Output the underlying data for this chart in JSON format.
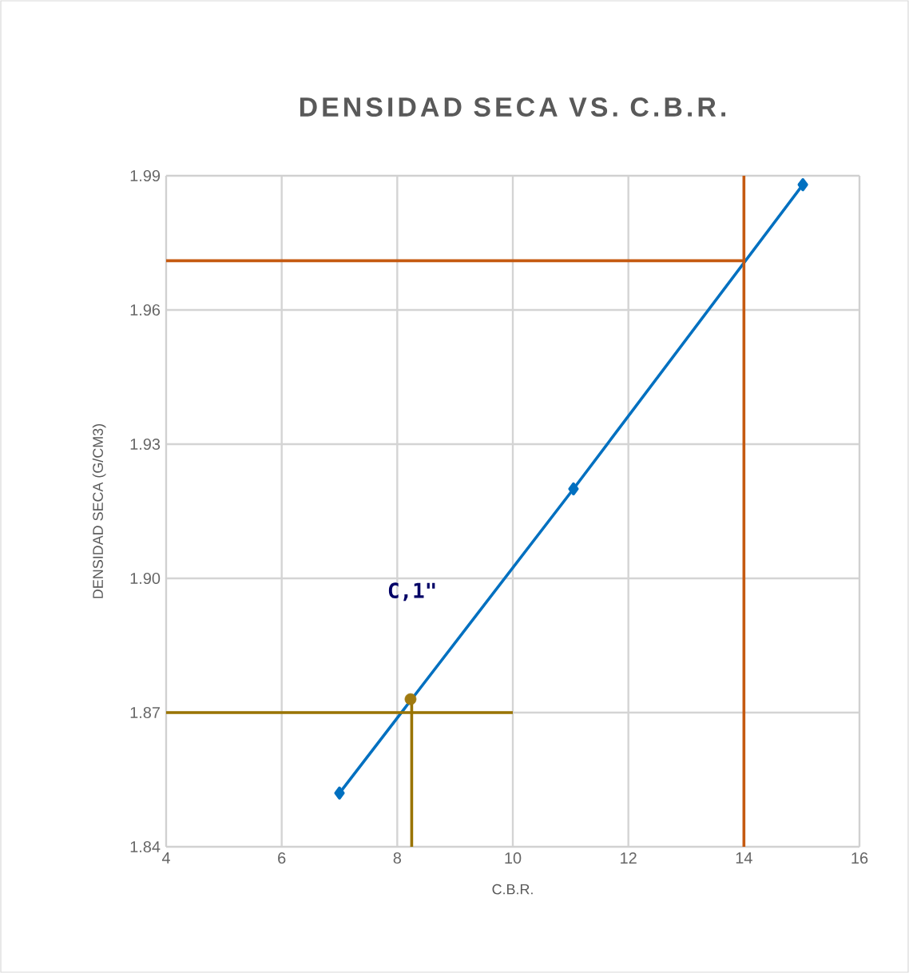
{
  "chart_data": {
    "type": "line",
    "title": "DENSIDAD  SECA VS.  C.B.R.",
    "xlabel": "C.B.R.",
    "ylabel": "DENSIDAD SECA (G/CM3)",
    "series": [
      {
        "color": "#0070c0",
        "marker": "diamond",
        "x": [
          7,
          11.05,
          15.02
        ],
        "values": [
          1.852,
          1.92,
          1.988
        ]
      },
      {
        "color": "#c55a11",
        "marker": "none",
        "x": [
          4,
          14
        ],
        "values": [
          1.971,
          1.971
        ]
      },
      {
        "color": "#c55a11",
        "marker": "none",
        "x": [
          14,
          14
        ],
        "values": [
          1.84,
          1.99
        ]
      },
      {
        "color": "#997300",
        "marker": "none",
        "x": [
          4,
          10
        ],
        "values": [
          1.87,
          1.87
        ]
      },
      {
        "color": "#997300",
        "marker": "none",
        "x": [
          8.25,
          8.25
        ],
        "values": [
          1.84,
          1.872
        ]
      },
      {
        "type": "scatter",
        "color": "#a07a10",
        "marker": "circle",
        "x": [
          8.23
        ],
        "values": [
          1.873
        ]
      }
    ],
    "xlim": [
      4,
      16
    ],
    "xticks": [
      4,
      6,
      8,
      10,
      12,
      14,
      16
    ],
    "ylim": [
      1.84,
      1.99
    ],
    "yticks": [
      1.84,
      1.87,
      {
        "value": 1.9,
        "label": "1.90"
      },
      1.93,
      1.96,
      1.99
    ],
    "grid": true,
    "annotations": [
      "C,1\""
    ]
  }
}
